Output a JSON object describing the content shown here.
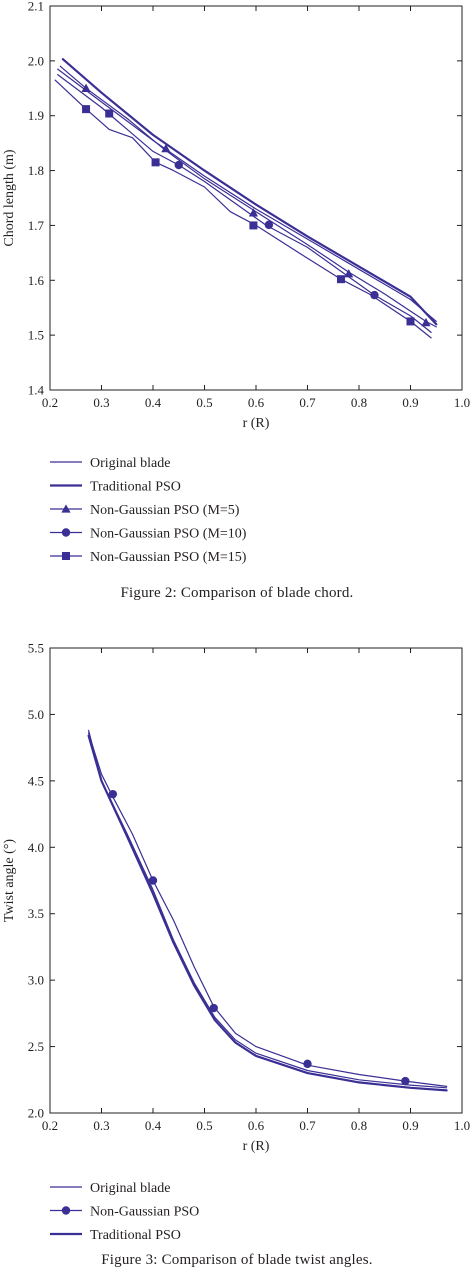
{
  "colors": {
    "series": "#3a2f94",
    "axis": "#231f20"
  },
  "chart_data": [
    {
      "type": "line",
      "xlabel": "r (R)",
      "ylabel": "Chord length (m)",
      "xlim": [
        0.2,
        1.0
      ],
      "ylim": [
        1.4,
        2.1
      ],
      "x_ticks": [
        "0.2",
        "0.3",
        "0.4",
        "0.5",
        "0.6",
        "0.7",
        "0.8",
        "0.9",
        "1.0"
      ],
      "y_ticks": [
        "1.4",
        "1.5",
        "1.6",
        "1.7",
        "1.8",
        "1.9",
        "2.0",
        "2.1"
      ],
      "grid": false,
      "legend_position": "below",
      "caption": "Figure 2: Comparison of blade chord.",
      "series": [
        {
          "name": "Original blade",
          "marker": "none",
          "line": "thin",
          "x": [
            0.215,
            0.3,
            0.4,
            0.5,
            0.6,
            0.7,
            0.8,
            0.9,
            0.95
          ],
          "y": [
            1.985,
            1.925,
            1.855,
            1.79,
            1.73,
            1.675,
            1.62,
            1.565,
            1.525
          ]
        },
        {
          "name": "Traditional PSO",
          "marker": "none",
          "line": "thick",
          "x": [
            0.225,
            0.3,
            0.4,
            0.5,
            0.6,
            0.7,
            0.8,
            0.9,
            0.95
          ],
          "y": [
            2.003,
            1.942,
            1.865,
            1.8,
            1.738,
            1.68,
            1.625,
            1.57,
            1.52
          ]
        },
        {
          "name": "Non-Gaussian PSO (M=5)",
          "marker": "triangle",
          "line": "thin",
          "x": [
            0.22,
            0.27,
            0.35,
            0.42,
            0.5,
            0.6,
            0.7,
            0.78,
            0.85,
            0.93,
            0.95
          ],
          "y": [
            1.99,
            1.95,
            1.895,
            1.84,
            1.785,
            1.725,
            1.665,
            1.615,
            1.575,
            1.525,
            1.515
          ]
        },
        {
          "name": "Non-Gaussian PSO (M=10)",
          "marker": "circle",
          "line": "thin",
          "x": [
            0.215,
            0.3,
            0.4,
            0.45,
            0.5,
            0.62,
            0.7,
            0.83,
            0.9,
            0.94
          ],
          "y": [
            1.975,
            1.915,
            1.835,
            1.81,
            1.78,
            1.7,
            1.66,
            1.573,
            1.535,
            1.505
          ]
        },
        {
          "name": "Non-Gaussian PSO (M=15)",
          "marker": "square",
          "line": "thin",
          "x": [
            0.21,
            0.27,
            0.315,
            0.36,
            0.405,
            0.44,
            0.5,
            0.55,
            0.6,
            0.7,
            0.765,
            0.82,
            0.9,
            0.94
          ],
          "y": [
            1.965,
            1.912,
            1.875,
            1.86,
            1.815,
            1.8,
            1.77,
            1.725,
            1.7,
            1.64,
            1.602,
            1.575,
            1.525,
            1.495
          ]
        }
      ]
    },
    {
      "type": "line",
      "xlabel": "r (R)",
      "ylabel": "Twist angle (°)",
      "xlim": [
        0.2,
        1.0
      ],
      "ylim": [
        2.0,
        5.5
      ],
      "x_ticks": [
        "0.2",
        "0.3",
        "0.4",
        "0.5",
        "0.6",
        "0.7",
        "0.8",
        "0.9",
        "1.0"
      ],
      "y_ticks": [
        "2.0",
        "2.5",
        "3.0",
        "3.5",
        "4.0",
        "4.5",
        "5.0",
        "5.5"
      ],
      "grid": false,
      "legend_position": "below",
      "caption": "Figure 3: Comparison of blade twist angles.",
      "series": [
        {
          "name": "Original blade",
          "marker": "none",
          "line": "thin",
          "x": [
            0.275,
            0.3,
            0.35,
            0.4,
            0.44,
            0.48,
            0.52,
            0.56,
            0.6,
            0.7,
            0.8,
            0.9,
            0.97
          ],
          "y": [
            4.88,
            4.5,
            4.1,
            3.68,
            3.3,
            2.98,
            2.72,
            2.55,
            2.45,
            2.32,
            2.25,
            2.21,
            2.19
          ]
        },
        {
          "name": "Non-Gaussian PSO",
          "marker": "circle",
          "line": "thin",
          "x": [
            0.275,
            0.3,
            0.322,
            0.36,
            0.4,
            0.44,
            0.48,
            0.518,
            0.56,
            0.6,
            0.7,
            0.8,
            0.89,
            0.97
          ],
          "y": [
            4.86,
            4.55,
            4.38,
            4.1,
            3.75,
            3.45,
            3.1,
            2.8,
            2.6,
            2.5,
            2.36,
            2.29,
            2.24,
            2.2
          ]
        },
        {
          "name": "Traditional PSO",
          "marker": "none",
          "line": "thick",
          "x": [
            0.275,
            0.3,
            0.35,
            0.4,
            0.44,
            0.48,
            0.52,
            0.56,
            0.6,
            0.7,
            0.8,
            0.9,
            0.97
          ],
          "y": [
            4.84,
            4.5,
            4.08,
            3.65,
            3.28,
            2.96,
            2.7,
            2.53,
            2.43,
            2.3,
            2.23,
            2.19,
            2.17
          ]
        }
      ],
      "markers": {
        "x": [
          0.322,
          0.4,
          0.518,
          0.7,
          0.89
        ],
        "y": [
          4.4,
          3.75,
          2.79,
          2.37,
          2.24
        ]
      }
    }
  ]
}
